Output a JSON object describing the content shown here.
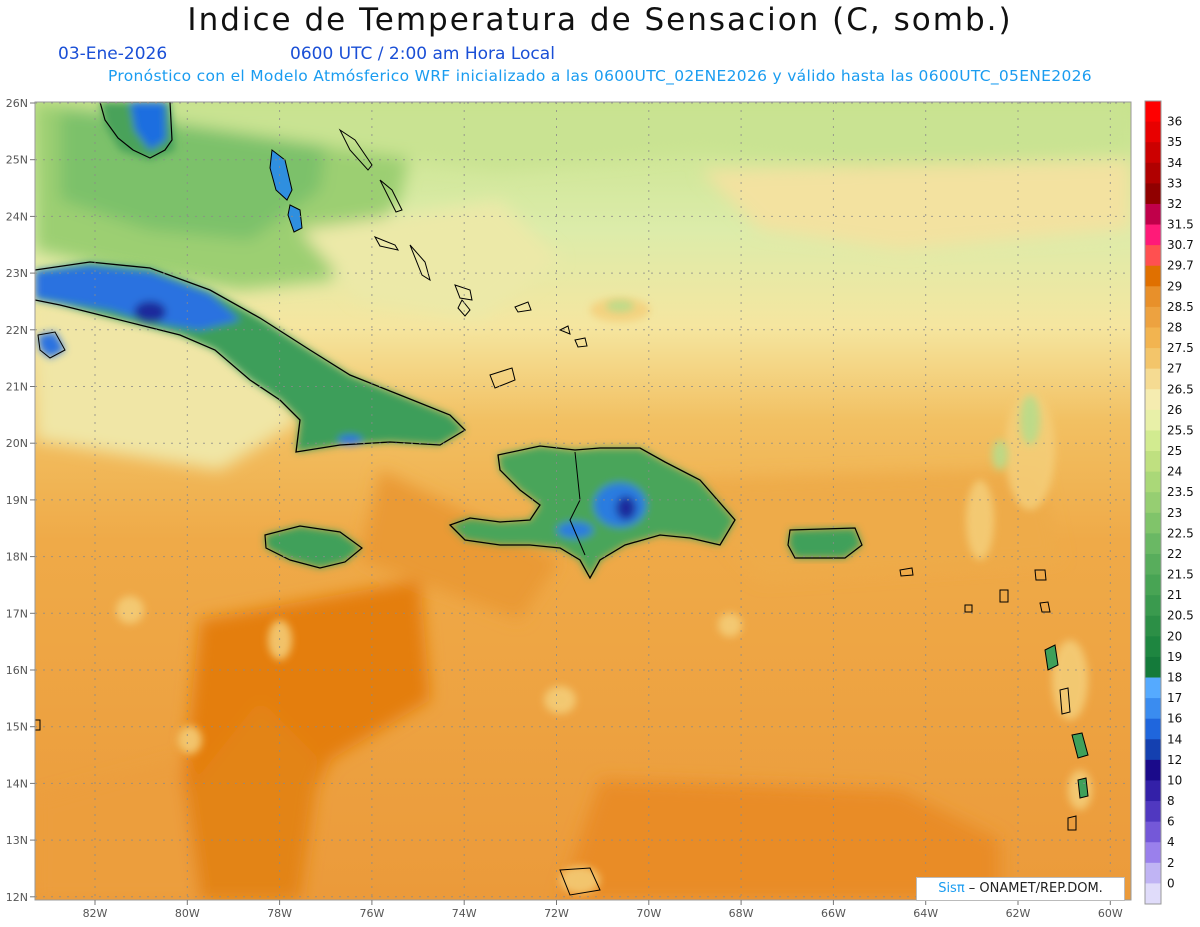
{
  "title": "Indice de Temperatura de Sensacion (C, somb.)",
  "date": "03-Ene-2026",
  "time": "0600 UTC / 2:00 am Hora Local",
  "forecast_note": "Pronóstico con el Modelo Atmósferico WRF inicializado a las 0600UTC_02ENE2026 y válido hasta las  0600UTC_05ENE2026",
  "credit": {
    "brand": "Sisπ",
    "separator": " – ",
    "org": "ONAMET/REP.DOM."
  },
  "map": {
    "lon_ticks": [
      "82W",
      "80W",
      "78W",
      "76W",
      "74W",
      "72W",
      "70W",
      "68W",
      "66W",
      "64W",
      "62W",
      "60W"
    ],
    "lat_ticks": [
      "26N",
      "25N",
      "24N",
      "23N",
      "22N",
      "21N",
      "20N",
      "19N",
      "18N",
      "17N",
      "16N",
      "15N",
      "14N",
      "13N",
      "12N"
    ]
  },
  "legend": {
    "levels": [
      "36",
      "35",
      "34",
      "33",
      "32",
      "31.5",
      "30.7",
      "29.7",
      "29",
      "28.5",
      "28",
      "27.5",
      "27",
      "26.5",
      "26",
      "25.5",
      "25",
      "24",
      "23.5",
      "23",
      "22.5",
      "22",
      "21.5",
      "21",
      "20.5",
      "20",
      "19",
      "18",
      "17",
      "16",
      "14",
      "12",
      "10",
      "8",
      "6",
      "4",
      "2",
      "0"
    ],
    "colors": [
      "#ff0000",
      "#e80000",
      "#cc0000",
      "#b00000",
      "#900000",
      "#c0004a",
      "#ff1a78",
      "#ff5050",
      "#e07000",
      "#e8902a",
      "#eda240",
      "#f2b450",
      "#f3c56a",
      "#f5db92",
      "#f5ecb0",
      "#e8f0a8",
      "#d2eb90",
      "#bfe080",
      "#aad878",
      "#96ce72",
      "#80c46a",
      "#6ab864",
      "#58ad5c",
      "#48a454",
      "#3a9a4e",
      "#2c8f46",
      "#1e8640",
      "#147a3a",
      "#55aaff",
      "#3a8cf0",
      "#1f66dd",
      "#1440b0",
      "#1a0a8a",
      "#3320a8",
      "#5038c0",
      "#7458d8",
      "#9a80ec",
      "#c0b4f4",
      "#e0dcfa"
    ]
  }
}
